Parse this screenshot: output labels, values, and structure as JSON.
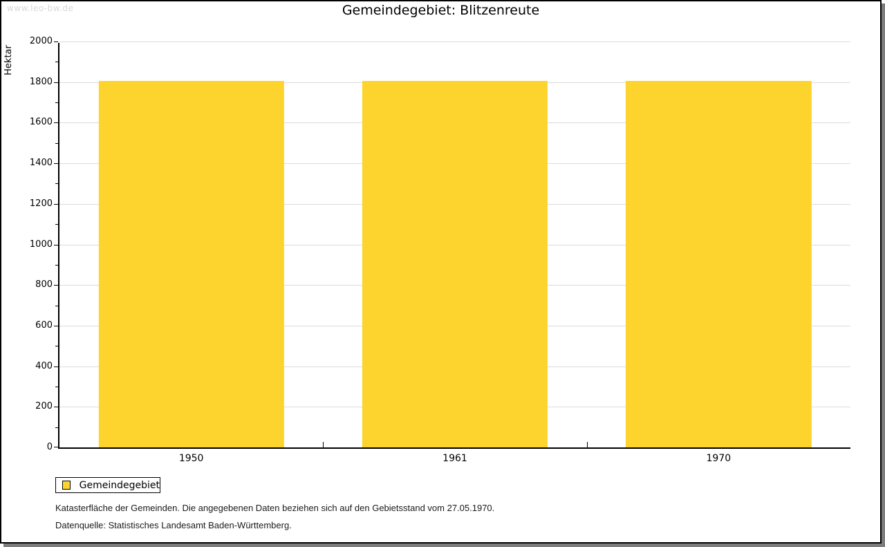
{
  "watermark": "www.leo-bw.de",
  "header": {
    "title": "Gemeindegebiet: Blitzenreute"
  },
  "chart_data": {
    "type": "bar",
    "title": "Gemeindegebiet: Blitzenreute",
    "categories": [
      "1950",
      "1961",
      "1970"
    ],
    "series": [
      {
        "name": "Gemeindegebiet",
        "values": [
          1812,
          1812,
          1812
        ]
      }
    ],
    "xlabel": "",
    "ylabel": "Hektar",
    "ylim": [
      0,
      2000
    ],
    "yticks": [
      0,
      200,
      400,
      600,
      800,
      1000,
      1200,
      1400,
      1600,
      1800,
      2000
    ],
    "minor_ytick_interval": 100,
    "grid": true,
    "legend_position": "bottom-left",
    "bar_color": "#fdd42d",
    "gridline_color": "#dbdbdb"
  },
  "legend": {
    "items": [
      {
        "label": "Gemeindegebiet",
        "color": "#fdd42d"
      }
    ]
  },
  "footer": {
    "line1": "Katasterfläche der Gemeinden. Die angegebenen Daten beziehen sich auf den Gebietsstand vom 27.05.1970.",
    "line2": "Datenquelle: Statistisches Landesamt Baden-Württemberg."
  }
}
